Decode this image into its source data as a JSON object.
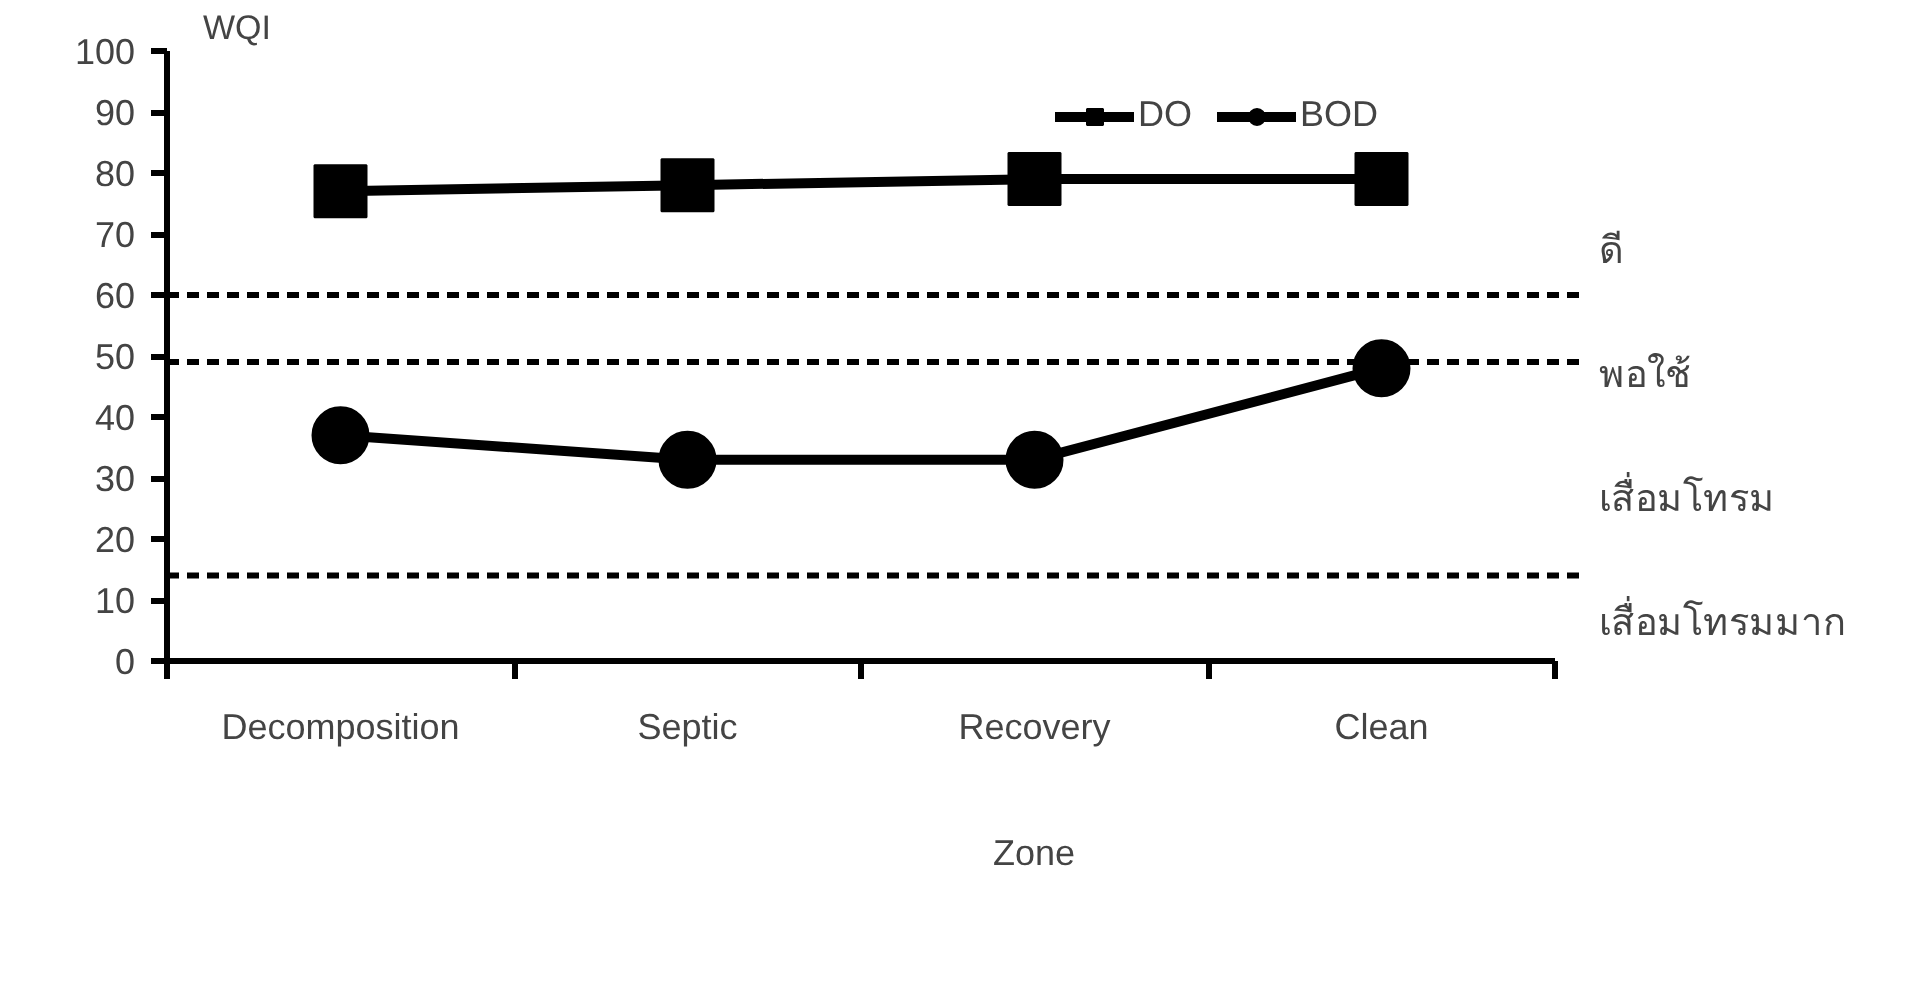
{
  "chart_data": {
    "type": "line",
    "xlabel": "Zone",
    "ylabel": "WQI",
    "categories": [
      "Decomposition",
      "Septic",
      "Recovery",
      "Clean"
    ],
    "series": [
      {
        "name": "DO",
        "color": "#000000",
        "marker": "square",
        "values": [
          77,
          78,
          79,
          79
        ]
      },
      {
        "name": "BOD",
        "color": "#000000",
        "marker": "circle",
        "values": [
          37,
          33,
          33,
          48
        ]
      }
    ],
    "ylim": [
      0,
      100
    ],
    "yticks": [
      0,
      10,
      20,
      30,
      40,
      50,
      60,
      70,
      80,
      90,
      100
    ],
    "grid": false,
    "legend": "top right",
    "line_style": "solid",
    "ref_lines": [
      {
        "axis": "y",
        "value": 60,
        "color": "#000000",
        "line_style": "dashed"
      },
      {
        "axis": "y",
        "value": 49,
        "color": "#000000",
        "line_style": "dashed"
      },
      {
        "axis": "y",
        "value": 14,
        "color": "#000000",
        "line_style": "dashed"
      }
    ],
    "annotations": [
      "ดี",
      "พอใช้",
      "เสื่อมโทรม",
      "เสื่อมโทรมมาก"
    ]
  }
}
